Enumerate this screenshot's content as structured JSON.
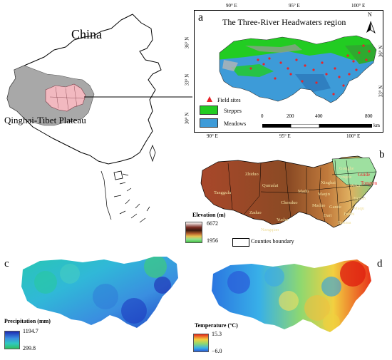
{
  "overview": {
    "country_label": "China",
    "plateau_label": "Qinghai-Tibet Plateau"
  },
  "panel_a": {
    "letter": "a",
    "title": "The Three-River Headwaters region",
    "top_ticks": [
      "90° E",
      "95° E",
      "100° E"
    ],
    "bottom_ticks": [
      "90° E",
      "95° E",
      "100° E"
    ],
    "left_ticks": [
      "36° N",
      "33° N",
      "30° N"
    ],
    "right_ticks": [
      "36° N",
      "33° N"
    ],
    "north_label": "N",
    "legend": [
      {
        "label": "Field sites",
        "color": "#e8242a",
        "symbol": "triangle"
      },
      {
        "label": "Steppes",
        "color": "#22cc22",
        "symbol": "box"
      },
      {
        "label": "Meadows",
        "color": "#3d9bd8",
        "symbol": "box"
      }
    ],
    "scale_labels": [
      "0",
      "200",
      "400",
      "800"
    ],
    "scale_unit": "km"
  },
  "panel_b": {
    "letter": "b",
    "counties_west": [
      "Zhiduo",
      "Tanggula",
      "Qumalai",
      "Zaduo",
      "Yushu",
      "Nangqian",
      "Chenduo",
      "Madu",
      "Maqin"
    ],
    "counties_east": [
      "Gonghe",
      "Tongde",
      "Xinghai",
      "Zeku",
      "Henan",
      "Gande",
      "Dari",
      "Jiuzhi",
      "Banma",
      "Maduo",
      "Maqu"
    ],
    "counties_red": [
      "Guide",
      "Tongren"
    ],
    "legend_title": "Elevation (m)",
    "legend_max": "6672",
    "legend_min": "1956",
    "boundary_label": "Counties boundary"
  },
  "panel_c": {
    "letter": "c",
    "legend_title": "Precipitation (mm)",
    "legend_max": "1194.7",
    "legend_min": "299.8"
  },
  "panel_d": {
    "letter": "d",
    "legend_title": "Temperature (°C)",
    "legend_max": "15.3",
    "legend_min": "−6.0"
  },
  "colors": {
    "field_sites": "#e8242a",
    "steppes": "#22cc22",
    "meadows": "#3d9bd8",
    "plateau_gray": "#a8a8a8",
    "trhr_pink": "#f2b9c0"
  }
}
